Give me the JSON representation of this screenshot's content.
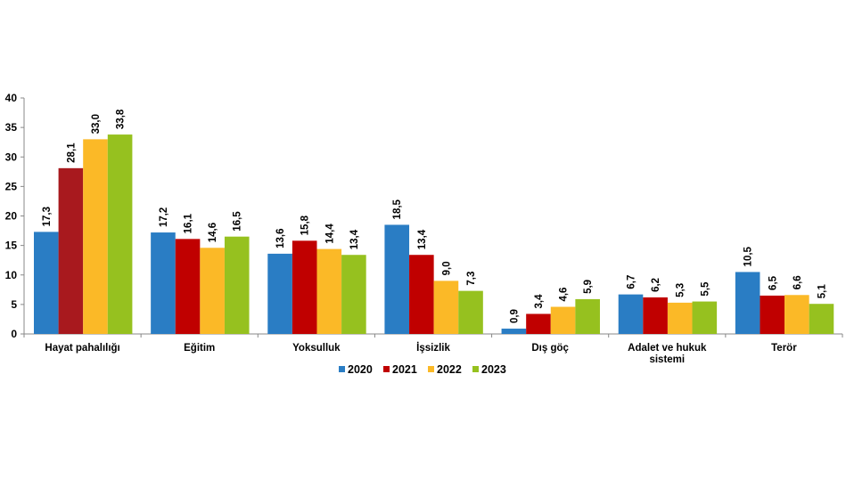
{
  "chart_data": {
    "type": "bar",
    "title": "",
    "xlabel": "",
    "ylabel": "",
    "ylim": [
      0,
      40
    ],
    "yticks": [
      "0",
      "5",
      "10",
      "15",
      "20",
      "25",
      "30",
      "35",
      "40"
    ],
    "grid": false,
    "legend_placement": "bottom",
    "categories": [
      [
        "Hayat pahalılığı"
      ],
      [
        "Eğitim"
      ],
      [
        "Yoksulluk"
      ],
      [
        "İşsizlik"
      ],
      [
        "Dış göç"
      ],
      [
        "Adalet ve hukuk",
        "sistemi"
      ],
      [
        "Terör"
      ]
    ],
    "series": [
      {
        "name": "2020",
        "color": "#2a7dc4",
        "values": [
          17.3,
          17.2,
          13.6,
          18.5,
          0.9,
          6.7,
          10.5
        ],
        "labels": [
          "17,3",
          "17,2",
          "13,6",
          "18,5",
          "0,9",
          "6,7",
          "10,5"
        ]
      },
      {
        "name": "2021",
        "color": "#c00000",
        "point_colors": {
          "0": "#a8191e"
        },
        "values": [
          28.1,
          16.1,
          15.8,
          13.4,
          3.4,
          6.2,
          6.5
        ],
        "labels": [
          "28,1",
          "16,1",
          "15,8",
          "13,4",
          "3,4",
          "6,2",
          "6,5"
        ]
      },
      {
        "name": "2022",
        "color": "#fbb927",
        "values": [
          33.0,
          14.6,
          14.4,
          9.0,
          4.6,
          5.3,
          6.6
        ],
        "labels": [
          "33,0",
          "14,6",
          "14,4",
          "9,0",
          "4,6",
          "5,3",
          "6,6"
        ]
      },
      {
        "name": "2023",
        "color": "#96c11f",
        "values": [
          33.8,
          16.5,
          13.4,
          7.3,
          5.9,
          5.5,
          5.1
        ],
        "labels": [
          "33,8",
          "16,5",
          "13,4",
          "7,3",
          "5,9",
          "5,5",
          "5,1"
        ]
      }
    ]
  }
}
